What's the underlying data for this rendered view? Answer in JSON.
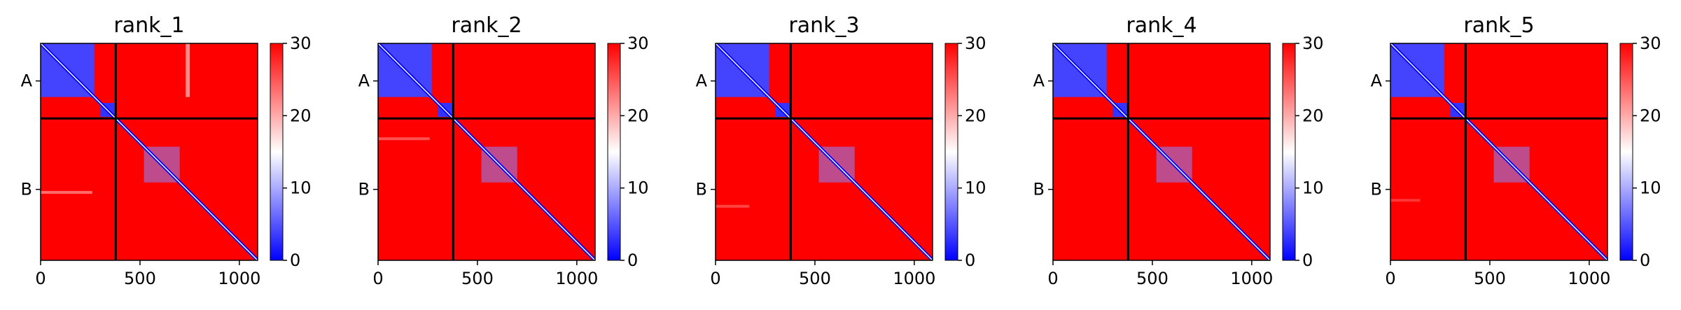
{
  "chart_data": [
    {
      "type": "heatmap",
      "title": "rank_1",
      "xticks": [
        "0",
        "500",
        "1000"
      ],
      "xtick_values": [
        0,
        500,
        1000
      ],
      "xlim": [
        0,
        1092
      ],
      "chain_labels": [
        "A",
        "B"
      ],
      "chain_ranges": [
        [
          0,
          378
        ],
        [
          378,
          1092
        ]
      ],
      "colorbar": {
        "ticks": [
          "0",
          "10",
          "20",
          "30"
        ],
        "tick_values": [
          0,
          10,
          20,
          30
        ],
        "range": [
          0,
          30
        ],
        "colormap": "bwr"
      },
      "low_error_blocks": [
        {
          "x": [
            0,
            270
          ],
          "y": [
            0,
            270
          ],
          "value": 4
        },
        {
          "x": [
            300,
            370
          ],
          "y": [
            300,
            370
          ],
          "value": 3
        },
        {
          "x": [
            520,
            700
          ],
          "y": [
            520,
            700
          ],
          "value": 8
        }
      ],
      "stripes": [
        {
          "x": 740,
          "y": [
            0,
            270
          ],
          "value": 20
        },
        {
          "y": 750,
          "x": [
            0,
            260
          ],
          "value": 22
        }
      ]
    },
    {
      "type": "heatmap",
      "title": "rank_2",
      "xticks": [
        "0",
        "500",
        "1000"
      ],
      "xtick_values": [
        0,
        500,
        1000
      ],
      "xlim": [
        0,
        1092
      ],
      "chain_labels": [
        "A",
        "B"
      ],
      "chain_ranges": [
        [
          0,
          378
        ],
        [
          378,
          1092
        ]
      ],
      "colorbar": {
        "ticks": [
          "0",
          "10",
          "20",
          "30"
        ],
        "tick_values": [
          0,
          10,
          20,
          30
        ],
        "range": [
          0,
          30
        ],
        "colormap": "bwr"
      },
      "low_error_blocks": [
        {
          "x": [
            0,
            270
          ],
          "y": [
            0,
            270
          ],
          "value": 4
        },
        {
          "x": [
            300,
            370
          ],
          "y": [
            300,
            370
          ],
          "value": 3
        },
        {
          "x": [
            520,
            700
          ],
          "y": [
            520,
            700
          ],
          "value": 8
        }
      ],
      "stripes": [
        {
          "y": 480,
          "x": [
            0,
            260
          ],
          "value": 24
        }
      ]
    },
    {
      "type": "heatmap",
      "title": "rank_3",
      "xticks": [
        "0",
        "500",
        "1000"
      ],
      "xtick_values": [
        0,
        500,
        1000
      ],
      "xlim": [
        0,
        1092
      ],
      "chain_labels": [
        "A",
        "B"
      ],
      "chain_ranges": [
        [
          0,
          378
        ],
        [
          378,
          1092
        ]
      ],
      "colorbar": {
        "ticks": [
          "0",
          "10",
          "20",
          "30"
        ],
        "tick_values": [
          0,
          10,
          20,
          30
        ],
        "range": [
          0,
          30
        ],
        "colormap": "bwr"
      },
      "low_error_blocks": [
        {
          "x": [
            0,
            270
          ],
          "y": [
            0,
            270
          ],
          "value": 4
        },
        {
          "x": [
            300,
            370
          ],
          "y": [
            300,
            370
          ],
          "value": 3
        },
        {
          "x": [
            520,
            700
          ],
          "y": [
            520,
            700
          ],
          "value": 8
        }
      ],
      "stripes": [
        {
          "y": 820,
          "x": [
            0,
            170
          ],
          "value": 25
        }
      ]
    },
    {
      "type": "heatmap",
      "title": "rank_4",
      "xticks": [
        "0",
        "500",
        "1000"
      ],
      "xtick_values": [
        0,
        500,
        1000
      ],
      "xlim": [
        0,
        1092
      ],
      "chain_labels": [
        "A",
        "B"
      ],
      "chain_ranges": [
        [
          0,
          378
        ],
        [
          378,
          1092
        ]
      ],
      "colorbar": {
        "ticks": [
          "0",
          "10",
          "20",
          "30"
        ],
        "tick_values": [
          0,
          10,
          20,
          30
        ],
        "range": [
          0,
          30
        ],
        "colormap": "bwr"
      },
      "low_error_blocks": [
        {
          "x": [
            0,
            270
          ],
          "y": [
            0,
            270
          ],
          "value": 4
        },
        {
          "x": [
            300,
            370
          ],
          "y": [
            300,
            370
          ],
          "value": 3
        },
        {
          "x": [
            520,
            700
          ],
          "y": [
            520,
            700
          ],
          "value": 8
        }
      ],
      "stripes": []
    },
    {
      "type": "heatmap",
      "title": "rank_5",
      "xticks": [
        "0",
        "500",
        "1000"
      ],
      "xtick_values": [
        0,
        500,
        1000
      ],
      "xlim": [
        0,
        1092
      ],
      "chain_labels": [
        "A",
        "B"
      ],
      "chain_ranges": [
        [
          0,
          378
        ],
        [
          378,
          1092
        ]
      ],
      "colorbar": {
        "ticks": [
          "0",
          "10",
          "20",
          "30"
        ],
        "tick_values": [
          0,
          10,
          20,
          30
        ],
        "range": [
          0,
          30
        ],
        "colormap": "bwr"
      },
      "low_error_blocks": [
        {
          "x": [
            0,
            270
          ],
          "y": [
            0,
            270
          ],
          "value": 4
        },
        {
          "x": [
            300,
            370
          ],
          "y": [
            300,
            370
          ],
          "value": 3
        },
        {
          "x": [
            520,
            700
          ],
          "y": [
            520,
            700
          ],
          "value": 8
        }
      ],
      "stripes": [
        {
          "y": 790,
          "x": [
            0,
            150
          ],
          "value": 26
        }
      ]
    }
  ]
}
